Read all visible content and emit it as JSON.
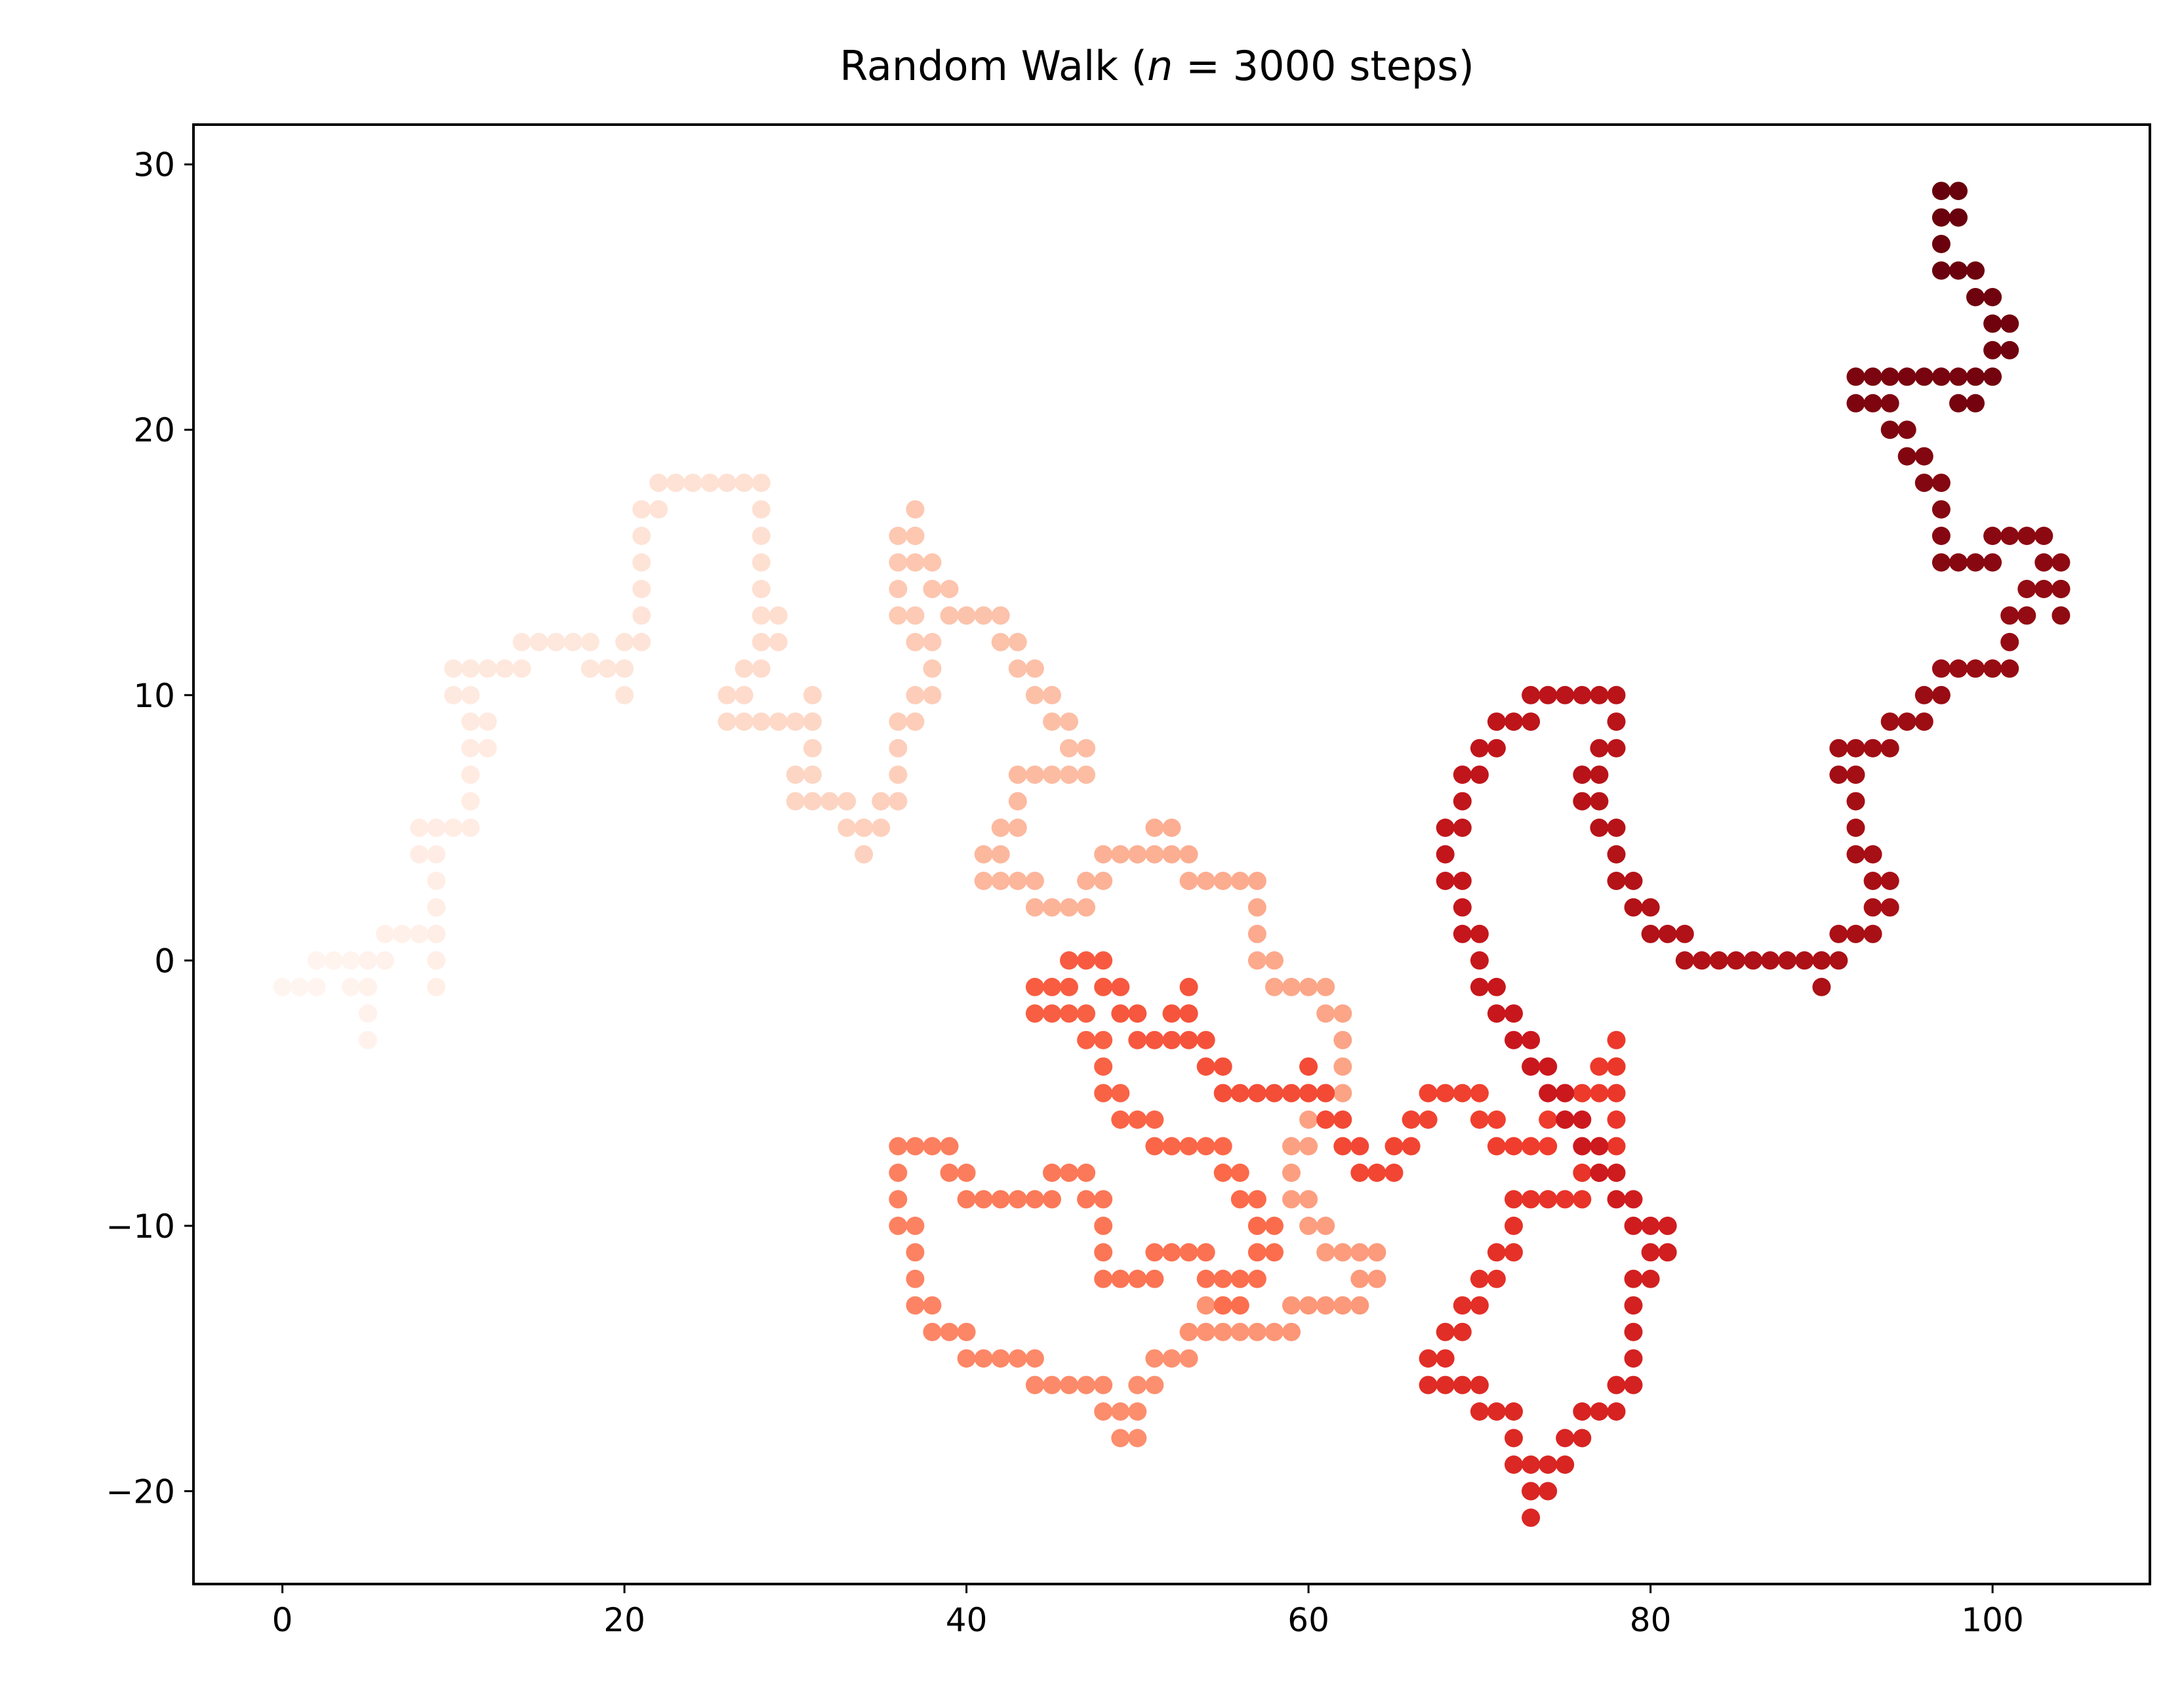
{
  "chart_data": {
    "type": "scatter",
    "title_parts": {
      "pre": "Random Walk (",
      "var": "n",
      "eq": " = ",
      "post": "3000 steps)"
    },
    "xlabel": "",
    "ylabel": "",
    "xlim": [
      -5.2,
      109.2
    ],
    "ylim": [
      -23.5,
      31.5
    ],
    "xticks": [
      0,
      20,
      40,
      60,
      80,
      100
    ],
    "yticks": [
      -20,
      -10,
      0,
      10,
      20,
      30
    ],
    "ytick_labels": [
      "−20",
      "−10",
      "0",
      "10",
      "20",
      "30"
    ],
    "grid": false,
    "colormap": "Reds",
    "color_ramp": [
      "#fff5f0",
      "#fee0d2",
      "#fcbba1",
      "#fc9272",
      "#fb6a4a",
      "#ef3b2c",
      "#cb181d",
      "#a50f15",
      "#67000d"
    ],
    "n_steps": 3000,
    "step_size": 1,
    "waypoints": [
      [
        0,
        -1
      ],
      [
        2,
        0
      ],
      [
        5,
        -2
      ],
      [
        5,
        -3
      ],
      [
        6,
        1
      ],
      [
        9,
        2
      ],
      [
        9,
        -1
      ],
      [
        8,
        5
      ],
      [
        11,
        6
      ],
      [
        12,
        9
      ],
      [
        10,
        11
      ],
      [
        14,
        12
      ],
      [
        18,
        11
      ],
      [
        20,
        10
      ],
      [
        21,
        13
      ],
      [
        22,
        18
      ],
      [
        28,
        17
      ],
      [
        29,
        12
      ],
      [
        26,
        9
      ],
      [
        31,
        10
      ],
      [
        30,
        6
      ],
      [
        34,
        4
      ],
      [
        36,
        7
      ],
      [
        38,
        11
      ],
      [
        36,
        14
      ],
      [
        37,
        17
      ],
      [
        39,
        13
      ],
      [
        42,
        12
      ],
      [
        45,
        9
      ],
      [
        47,
        7
      ],
      [
        43,
        6
      ],
      [
        41,
        3
      ],
      [
        44,
        2
      ],
      [
        48,
        4
      ],
      [
        51,
        5
      ],
      [
        53,
        3
      ],
      [
        57,
        2
      ],
      [
        58,
        -1
      ],
      [
        62,
        -3
      ],
      [
        59,
        -8
      ],
      [
        61,
        -11
      ],
      [
        64,
        -12
      ],
      [
        63,
        -13
      ],
      [
        59,
        -14
      ],
      [
        55,
        -13
      ],
      [
        53,
        -15
      ],
      [
        50,
        -17
      ],
      [
        50,
        -18
      ],
      [
        48,
        -16
      ],
      [
        44,
        -15
      ],
      [
        40,
        -14
      ],
      [
        37,
        -12
      ],
      [
        36,
        -9
      ],
      [
        36,
        -7
      ],
      [
        40,
        -9
      ],
      [
        45,
        -8
      ],
      [
        48,
        -10
      ],
      [
        48,
        -12
      ],
      [
        51,
        -11
      ],
      [
        55,
        -13
      ],
      [
        58,
        -10
      ],
      [
        55,
        -7
      ],
      [
        51,
        -6
      ],
      [
        48,
        -4
      ],
      [
        47,
        -2
      ],
      [
        44,
        -1
      ],
      [
        46,
        0
      ],
      [
        50,
        -3
      ],
      [
        53,
        -1
      ],
      [
        55,
        -5
      ],
      [
        60,
        -4
      ],
      [
        63,
        -8
      ],
      [
        67,
        -5
      ],
      [
        71,
        -7
      ],
      [
        75,
        -5
      ],
      [
        78,
        -3
      ],
      [
        76,
        -9
      ],
      [
        72,
        -10
      ],
      [
        70,
        -13
      ],
      [
        68,
        -15
      ],
      [
        67,
        -16
      ],
      [
        70,
        -17
      ],
      [
        72,
        -18
      ],
      [
        73,
        -20
      ],
      [
        73,
        -21
      ],
      [
        74,
        -19
      ],
      [
        76,
        -17
      ],
      [
        79,
        -15
      ],
      [
        79,
        -12
      ],
      [
        81,
        -10
      ],
      [
        78,
        -8
      ],
      [
        76,
        -6
      ],
      [
        74,
        -4
      ],
      [
        72,
        -2
      ],
      [
        71,
        -1
      ],
      [
        70,
        0
      ],
      [
        69,
        2
      ],
      [
        68,
        4
      ],
      [
        69,
        6
      ],
      [
        71,
        9
      ],
      [
        73,
        10
      ],
      [
        78,
        9
      ],
      [
        76,
        6
      ],
      [
        78,
        4
      ],
      [
        80,
        1
      ],
      [
        82,
        0
      ],
      [
        87,
        0
      ],
      [
        90,
        -1
      ],
      [
        91,
        1
      ],
      [
        94,
        3
      ],
      [
        92,
        5
      ],
      [
        91,
        8
      ],
      [
        94,
        9
      ],
      [
        96,
        10
      ],
      [
        97,
        11
      ],
      [
        101,
        12
      ],
      [
        102,
        14
      ],
      [
        104,
        13
      ],
      [
        103,
        16
      ],
      [
        100,
        15
      ],
      [
        97,
        16
      ],
      [
        96,
        19
      ],
      [
        94,
        21
      ],
      [
        92,
        22
      ],
      [
        98,
        21
      ],
      [
        100,
        23
      ],
      [
        101,
        24
      ],
      [
        99,
        26
      ],
      [
        97,
        27
      ],
      [
        98,
        29
      ],
      [
        97,
        29
      ]
    ]
  }
}
